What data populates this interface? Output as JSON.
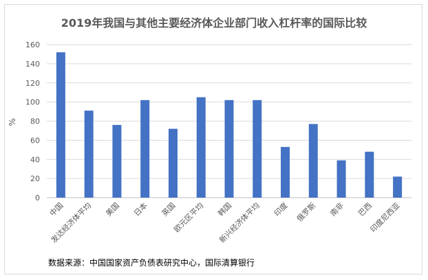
{
  "chart_data": {
    "type": "bar",
    "title": "2019年我国与其他主要经济体企业部门收入杠杆率的国际比较",
    "ylabel": "%",
    "xlabel": "",
    "ylim": [
      0,
      160
    ],
    "yticks": [
      0,
      20,
      40,
      60,
      80,
      100,
      120,
      140,
      160
    ],
    "grid": true,
    "bar_color": "#4472C4",
    "categories": [
      "中国",
      "发达经济体平均",
      "美国",
      "日本",
      "英国",
      "欧元区平均",
      "韩国",
      "新兴经济体平均",
      "印度",
      "俄罗斯",
      "南非",
      "巴西",
      "印度尼西亚"
    ],
    "values": [
      152,
      91,
      76,
      102,
      72,
      105,
      102,
      102,
      53,
      77,
      39,
      48,
      22
    ]
  },
  "footer": {
    "source": "数据来源：中国国家资产负债表研究中心，国际清算银行"
  }
}
